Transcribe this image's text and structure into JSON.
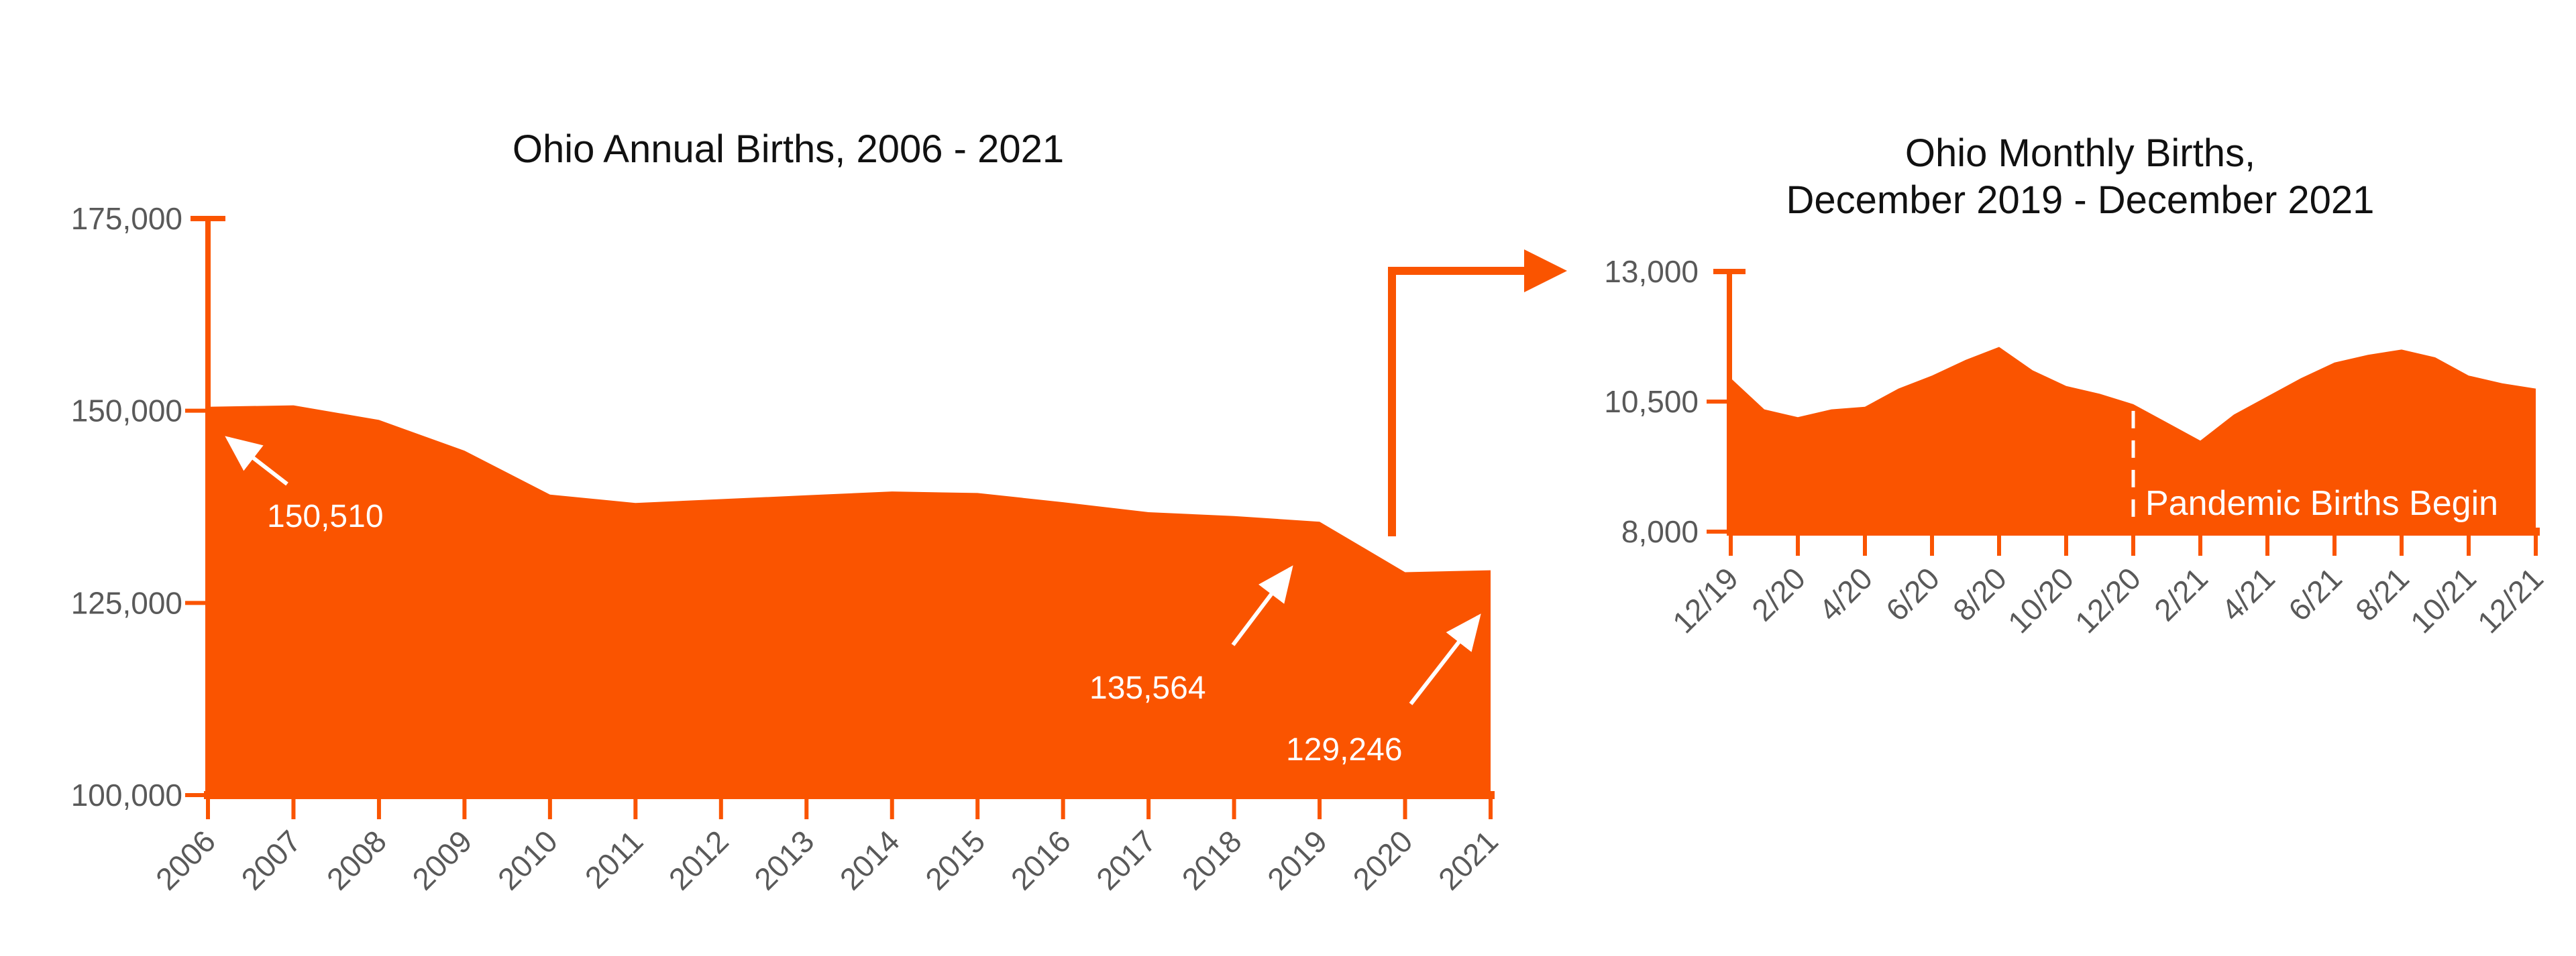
{
  "colors": {
    "accent_orange": "#FA5400",
    "label_gray": "#595959",
    "title_black": "#111111",
    "annotation_white": "#FFFFFF",
    "background": "#FFFFFF"
  },
  "chart_data": [
    {
      "id": "annual",
      "type": "area",
      "title": "Ohio Annual Births, 2006 - 2021",
      "categories": [
        "2006",
        "2007",
        "2008",
        "2009",
        "2010",
        "2011",
        "2012",
        "2013",
        "2014",
        "2015",
        "2016",
        "2017",
        "2018",
        "2019",
        "2020",
        "2021"
      ],
      "values": [
        150510,
        150700,
        148800,
        144800,
        139100,
        138000,
        138500,
        139000,
        139500,
        139300,
        138100,
        136800,
        136300,
        135564,
        129000,
        129246
      ],
      "ylim": [
        100000,
        175000
      ],
      "yticks": [
        175000,
        150000,
        125000,
        100000
      ],
      "ytick_labels": [
        "175,000",
        "150,000",
        "125,000",
        "100,000"
      ],
      "xlabel": "",
      "ylabel": "",
      "grid": false,
      "legend": "none",
      "annotations": [
        {
          "label": "150,510",
          "target_category": "2006",
          "value": 150510
        },
        {
          "label": "135,564",
          "target_category": "2019",
          "value": 135564
        },
        {
          "label": "129,246",
          "target_category": "2021",
          "value": 129246
        }
      ]
    },
    {
      "id": "monthly",
      "type": "area",
      "title_line1": "Ohio Monthly Births,",
      "title_line2": "December 2019 - December 2021",
      "x_labels": [
        "12/19",
        "2/20",
        "4/20",
        "6/20",
        "8/20",
        "10/20",
        "12/20",
        "2/21",
        "4/21",
        "6/21",
        "8/21",
        "10/21",
        "12/21"
      ],
      "months": [
        "12/19",
        "1/20",
        "2/20",
        "3/20",
        "4/20",
        "5/20",
        "6/20",
        "7/20",
        "8/20",
        "9/20",
        "10/20",
        "11/20",
        "12/20",
        "1/21",
        "2/21",
        "3/21",
        "4/21",
        "5/21",
        "6/21",
        "7/21",
        "8/21",
        "9/21",
        "10/21",
        "11/21",
        "12/21"
      ],
      "values": [
        10950,
        10350,
        10200,
        10350,
        10400,
        10750,
        11000,
        11300,
        11550,
        11100,
        10800,
        10650,
        10450,
        10100,
        9750,
        10250,
        10600,
        10950,
        11250,
        11400,
        11500,
        11350,
        11000,
        10850,
        10750
      ],
      "ylim": [
        8000,
        13000
      ],
      "yticks": [
        13000,
        10500,
        8000
      ],
      "ytick_labels": [
        "13,000",
        "10,500",
        "8,000"
      ],
      "xlabel": "",
      "ylabel": "",
      "grid": false,
      "legend": "none",
      "event_line": {
        "label": "Pandemic Births Begin",
        "x_label": "12/20"
      }
    }
  ]
}
